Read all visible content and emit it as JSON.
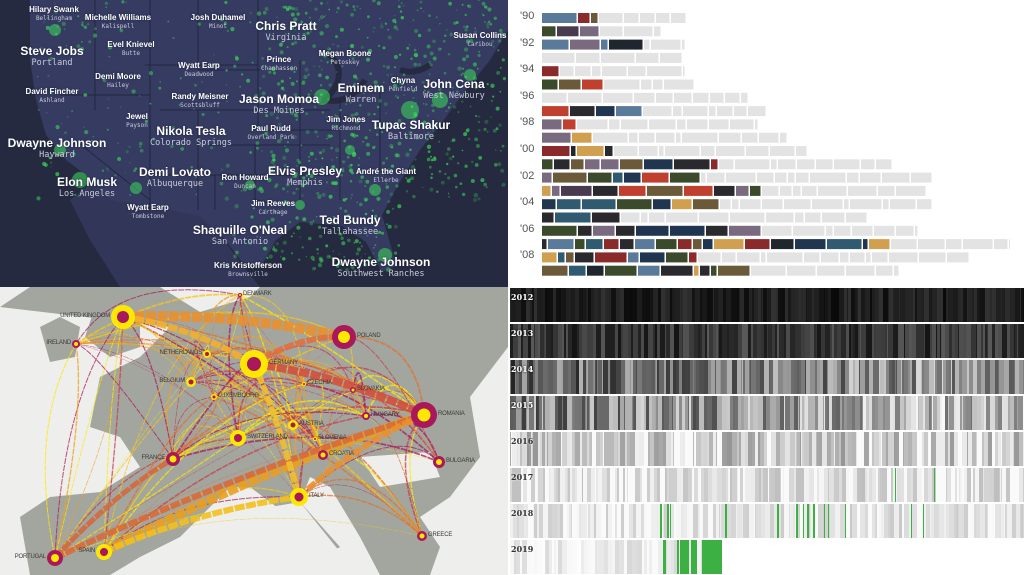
{
  "map": {
    "colors": {
      "ocean": "#262a40",
      "land": "#363b62",
      "dots": "#3ddc5a"
    },
    "labels": [
      {
        "name": "Hilary Swank",
        "place": "Bellingham"
      },
      {
        "name": "Michelle Williams",
        "place": "Kalispell"
      },
      {
        "name": "Josh Duhamel",
        "place": "Minot"
      },
      {
        "name": "Chris Pratt",
        "place": "Virginia"
      },
      {
        "name": "Susan Collins",
        "place": "Caribou"
      },
      {
        "name": "Steve Jobs",
        "place": "Portland"
      },
      {
        "name": "Evel Knievel",
        "place": "Butte"
      },
      {
        "name": "Megan Boone",
        "place": "Petoskey"
      },
      {
        "name": "Wyatt Earp",
        "place": "Deadwood"
      },
      {
        "name": "Prince",
        "place": "Chanhassen"
      },
      {
        "name": "Demi Moore",
        "place": "Hailey"
      },
      {
        "name": "Eminem",
        "place": "Warren"
      },
      {
        "name": "Chyna",
        "place": "Penfield"
      },
      {
        "name": "John Cena",
        "place": "West Newbury"
      },
      {
        "name": "David Fincher",
        "place": "Ashland"
      },
      {
        "name": "Randy Meisner",
        "place": "Scottsbluff"
      },
      {
        "name": "Jason Momoa",
        "place": "Des Moines"
      },
      {
        "name": "Jewel",
        "place": "Payson"
      },
      {
        "name": "Jim Jones",
        "place": "Richmond"
      },
      {
        "name": "Tupac Shakur",
        "place": "Baltimore"
      },
      {
        "name": "Nikola Tesla",
        "place": "Colorado Springs"
      },
      {
        "name": "Paul Rudd",
        "place": "Overland Park"
      },
      {
        "name": "Dwayne Johnson",
        "place": "Hayward"
      },
      {
        "name": "Demi Lovato",
        "place": "Albuquerque"
      },
      {
        "name": "Elvis Presley",
        "place": "Memphis"
      },
      {
        "name": "Ron Howard",
        "place": "Duncan"
      },
      {
        "name": "André the Giant",
        "place": "Ellerbe"
      },
      {
        "name": "Elon Musk",
        "place": "Los Angeles"
      },
      {
        "name": "Jim Reeves",
        "place": "Carthage"
      },
      {
        "name": "Wyatt Earp",
        "place": "Tombstone"
      },
      {
        "name": "Ted Bundy",
        "place": "Tallahassee"
      },
      {
        "name": "Shaquille O'Neal",
        "place": "San Antonio"
      },
      {
        "name": "Dwayne Johnson",
        "place": "Southwest Ranches"
      },
      {
        "name": "Kris Kristofferson",
        "place": "Brownsville"
      }
    ]
  },
  "films": {
    "year_labels": [
      "'90",
      "'92",
      "'94",
      "'96",
      "'98",
      "'00",
      "'02",
      "'04",
      "'06",
      "'08"
    ],
    "colors": {
      "placeholder": "#e3e3e3"
    }
  },
  "europe": {
    "colors": {
      "land": "#a2a69e",
      "sea": "#eeeeec",
      "yellow": "#ffe800",
      "maroon": "#a8185a",
      "orange": "#e8882a"
    },
    "countries": [
      "DENMARK",
      "UNITED KINGDOM",
      "IRELAND",
      "POLAND",
      "NETHERLANDS",
      "GERMANY",
      "BELGIUM",
      "CZECHIA",
      "SLOVAKIA",
      "LUXEMBOURG",
      "HUNGARY",
      "ROMANIA",
      "AUSTRIA",
      "SWITZERLAND",
      "SLOVENIA",
      "FRANCE",
      "CROATIA",
      "BULGARIA",
      "ITALY",
      "GREECE",
      "SPAIN",
      "PORTUGAL"
    ]
  },
  "barcode": {
    "years": [
      "2012",
      "2013",
      "2014",
      "2015",
      "2016",
      "2017",
      "2018",
      "2019"
    ],
    "colors": {
      "highlight": "#3cb043"
    }
  },
  "chart_data": [
    {
      "type": "map",
      "panel": "us-birthplaces"
    },
    {
      "type": "bar",
      "panel": "film-timeline",
      "categories": [
        "'90",
        "'92",
        "'94",
        "'96",
        "'98",
        "'00",
        "'02",
        "'04",
        "'06",
        "'08"
      ]
    },
    {
      "type": "map",
      "panel": "europe-flows"
    },
    {
      "type": "heatmap",
      "panel": "barcode",
      "categories": [
        "2012",
        "2013",
        "2014",
        "2015",
        "2016",
        "2017",
        "2018",
        "2019"
      ]
    }
  ]
}
